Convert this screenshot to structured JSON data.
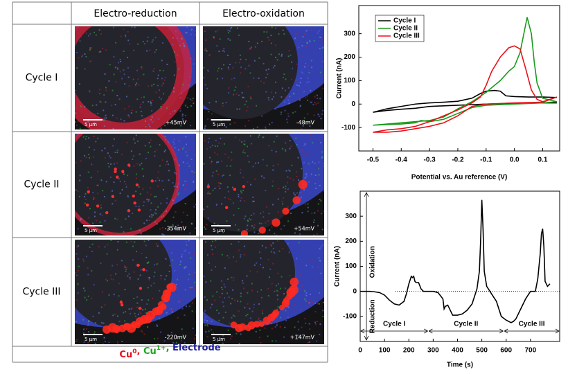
{
  "table": {
    "header": [
      "Electro-reduction",
      "Electro-oxidation"
    ],
    "rows": [
      {
        "label": "Cycle I",
        "cells": [
          {
            "scale": "5 μm",
            "potential": "+45mV"
          },
          {
            "scale": "5 μm",
            "potential": "-48mV"
          }
        ]
      },
      {
        "label": "Cycle II",
        "cells": [
          {
            "scale": "5 μm",
            "potential": "-354mV"
          },
          {
            "scale": "5 μm",
            "potential": "+54mV"
          }
        ]
      },
      {
        "label": "Cycle III",
        "cells": [
          {
            "scale": "5 μm",
            "potential": "-220mV"
          },
          {
            "scale": "5 μm",
            "potential": "+147mV"
          }
        ]
      }
    ],
    "footer": {
      "items": [
        {
          "text": "Cu",
          "sup": "0",
          "color": "#e8101a"
        },
        {
          "text": "Cu",
          "sup": "1+",
          "color": "#18a818"
        },
        {
          "text": "Electrode",
          "color": "#1c1c9c"
        }
      ],
      "separator": ", "
    }
  },
  "chart_data": [
    {
      "type": "line",
      "xlabel": "Potential vs. Au reference (V)",
      "ylabel": "Current (nA)",
      "xlim": [
        -0.55,
        0.16
      ],
      "ylim": [
        -200,
        420
      ],
      "xticks": [
        -0.5,
        -0.4,
        -0.3,
        -0.2,
        -0.1,
        {
          "value": 0,
          "label": "0.0"
        },
        0.1
      ],
      "yticks": [
        -100,
        0,
        100,
        200,
        300
      ],
      "legend": "upper left",
      "series": [
        {
          "name": "Cycle I",
          "color": "#000000",
          "x": [
            0.15,
            0.1,
            0.0,
            -0.1,
            -0.2,
            -0.3,
            -0.35,
            -0.4,
            -0.45,
            -0.5,
            -0.45,
            -0.4,
            -0.35,
            -0.3,
            -0.25,
            -0.2,
            -0.15,
            -0.12,
            -0.1,
            -0.07,
            -0.05,
            -0.03,
            0.0,
            0.05,
            0.1,
            0.15
          ],
          "values": [
            5,
            5,
            3,
            0,
            -5,
            -10,
            -18,
            -22,
            -27,
            -35,
            -20,
            -10,
            0,
            5,
            8,
            12,
            25,
            45,
            55,
            58,
            55,
            35,
            32,
            30,
            30,
            28
          ]
        },
        {
          "name": "Cycle II",
          "color": "#1a9a1a",
          "x": [
            0.15,
            0.1,
            0.0,
            -0.1,
            -0.15,
            -0.2,
            -0.25,
            -0.3,
            -0.33,
            -0.35,
            -0.4,
            -0.5,
            -0.45,
            -0.4,
            -0.3,
            -0.25,
            -0.22,
            -0.2,
            -0.15,
            -0.1,
            -0.05,
            -0.02,
            0.0,
            0.02,
            0.04,
            0.045,
            0.06,
            0.07,
            0.08,
            0.1,
            0.15
          ],
          "values": [
            10,
            5,
            0,
            -5,
            -15,
            -40,
            -65,
            -75,
            -70,
            -80,
            -85,
            -90,
            -85,
            -80,
            -70,
            -55,
            -35,
            -20,
            10,
            50,
            100,
            140,
            160,
            220,
            340,
            370,
            300,
            180,
            90,
            25,
            10
          ]
        },
        {
          "name": "Cycle III",
          "color": "#e8101a",
          "x": [
            0.15,
            0.1,
            0.0,
            -0.1,
            -0.15,
            -0.2,
            -0.25,
            -0.3,
            -0.35,
            -0.4,
            -0.45,
            -0.5,
            -0.45,
            -0.4,
            -0.35,
            -0.3,
            -0.25,
            -0.2,
            -0.15,
            -0.12,
            -0.1,
            -0.08,
            -0.05,
            -0.02,
            0.0,
            0.02,
            0.04,
            0.06,
            0.08,
            0.1,
            0.15
          ],
          "values": [
            30,
            8,
            5,
            0,
            -10,
            -50,
            -80,
            -95,
            -105,
            -115,
            -120,
            -120,
            -110,
            -105,
            -95,
            -75,
            -50,
            -25,
            5,
            30,
            80,
            140,
            200,
            240,
            248,
            235,
            150,
            60,
            20,
            10,
            30
          ]
        }
      ]
    },
    {
      "type": "line",
      "xlabel": "Time (s)",
      "ylabel": "Current (nA)",
      "xlim": [
        0,
        820
      ],
      "ylim": [
        -200,
        400
      ],
      "xticks": [
        0,
        100,
        200,
        300,
        400,
        500,
        600,
        700
      ],
      "yticks": [
        -100,
        0,
        100,
        200,
        300
      ],
      "color": "#000000",
      "x": [
        0,
        40,
        60,
        80,
        100,
        120,
        140,
        160,
        180,
        190,
        200,
        210,
        215,
        220,
        225,
        230,
        240,
        250,
        260,
        280,
        300,
        320,
        340,
        345,
        350,
        360,
        370,
        380,
        400,
        420,
        440,
        460,
        470,
        480,
        490,
        495,
        500,
        505,
        510,
        520,
        530,
        540,
        560,
        580,
        600,
        620,
        630,
        640,
        660,
        680,
        700,
        720,
        730,
        740,
        745,
        750,
        755,
        760,
        770,
        780
      ],
      "values": [
        0,
        0,
        -2,
        -5,
        -15,
        -35,
        -50,
        -55,
        -40,
        -10,
        30,
        60,
        55,
        60,
        40,
        35,
        35,
        10,
        0,
        0,
        0,
        -5,
        -30,
        -70,
        -60,
        -55,
        -75,
        -95,
        -95,
        -90,
        -75,
        -50,
        -20,
        10,
        80,
        200,
        365,
        250,
        80,
        20,
        5,
        -10,
        -40,
        -100,
        -115,
        -125,
        -120,
        -110,
        -70,
        -30,
        0,
        0,
        50,
        150,
        230,
        250,
        180,
        40,
        20,
        30
      ],
      "annotations": {
        "oxidation": "Oxidation",
        "reduction": "Reduction",
        "cycles": [
          {
            "text": "Cycle I",
            "span": [
              0,
              280
            ]
          },
          {
            "text": "Cycle II",
            "span": [
              280,
              590
            ]
          },
          {
            "text": "Cycle III",
            "span": [
              590,
              820
            ]
          }
        ]
      }
    }
  ]
}
